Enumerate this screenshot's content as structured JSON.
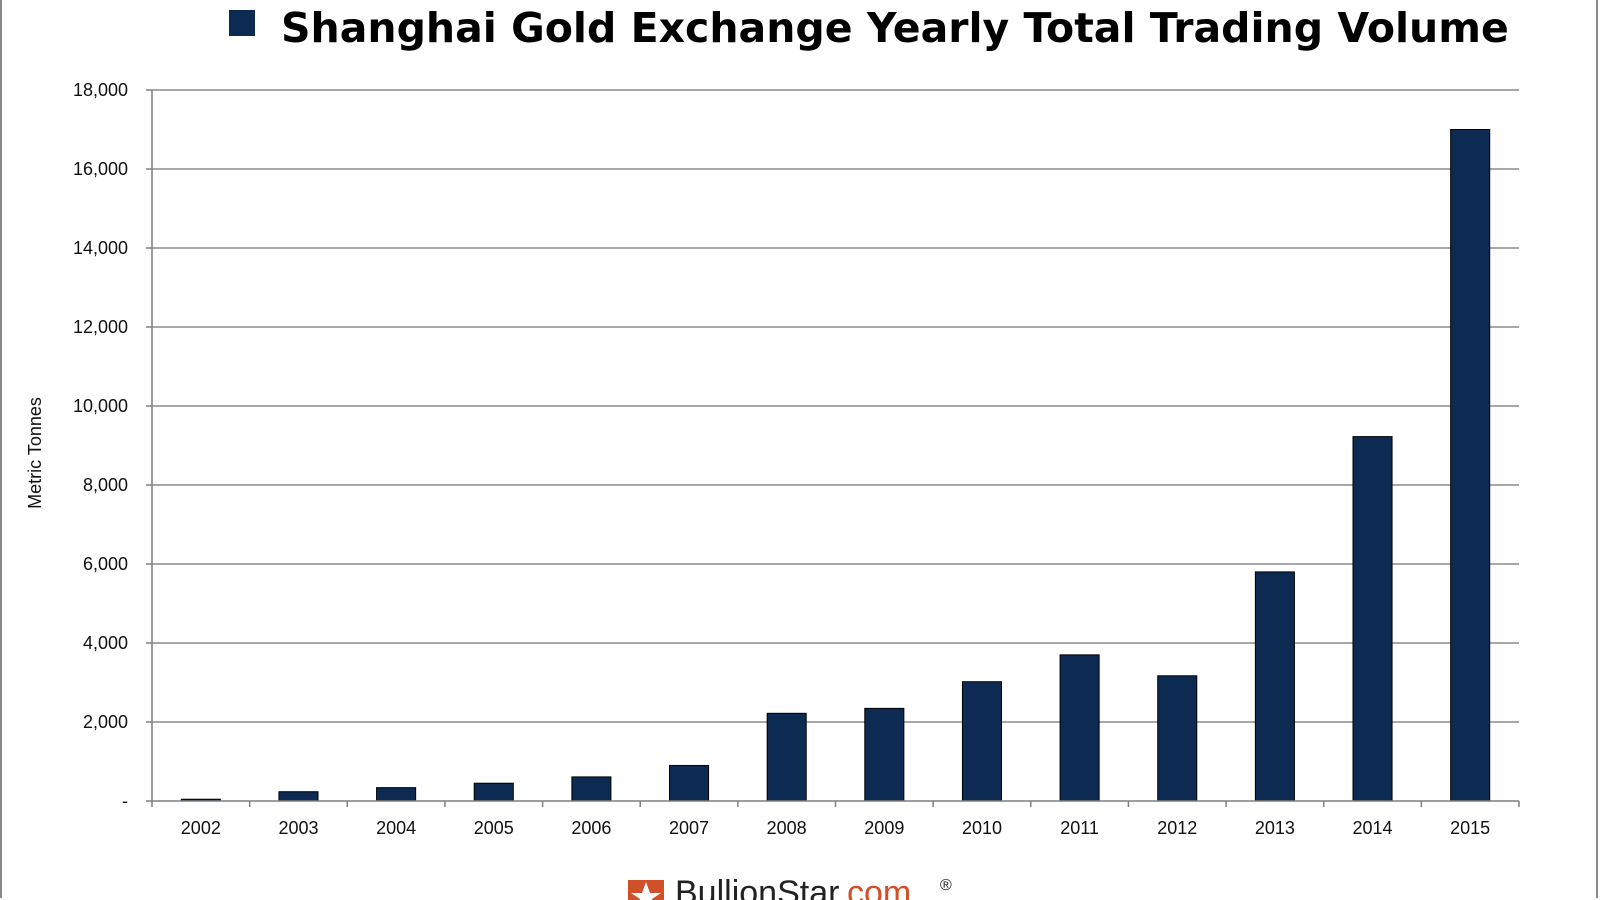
{
  "chart_data": {
    "type": "bar",
    "title": "Shanghai Gold Exchange Yearly Total Trading Volume",
    "xlabel": "",
    "ylabel": "Metric Tonnes",
    "categories": [
      "2002",
      "2003",
      "2004",
      "2005",
      "2006",
      "2007",
      "2008",
      "2009",
      "2010",
      "2011",
      "2012",
      "2013",
      "2014",
      "2015"
    ],
    "series": [
      {
        "name": "Shanghai Gold Exchange Yearly Total Trading Volume",
        "values": [
          45,
          235,
          338,
          450,
          610,
          900,
          2220,
          2345,
          3020,
          3700,
          3170,
          5800,
          9225,
          17000
        ]
      }
    ],
    "ylim": [
      0,
      18000
    ],
    "yticks": [
      0,
      2000,
      4000,
      6000,
      8000,
      10000,
      12000,
      14000,
      16000,
      18000
    ],
    "ytick_labels": [
      "-",
      "2,000",
      "4,000",
      "6,000",
      "8,000",
      "10,000",
      "12,000",
      "14,000",
      "16,000",
      "18,000"
    ],
    "grid": true,
    "legend": "top",
    "colors": {
      "bar": "#0d2a52",
      "grid": "#8c8c8c",
      "axis": "#7f7f7f"
    }
  },
  "footer": {
    "brand_name": "BullionStar",
    "brand_domain": ".com",
    "brand_mark": "®",
    "colors": {
      "name": "#222222",
      "domain": "#d0502a"
    }
  }
}
